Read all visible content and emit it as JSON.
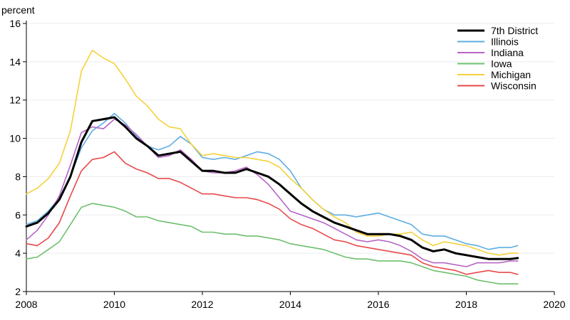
{
  "chart_data": {
    "type": "line",
    "y_unit_label": "percent",
    "xlim": [
      2008,
      2020
    ],
    "ylim": [
      2,
      16
    ],
    "x_ticks": [
      2008,
      2010,
      2012,
      2014,
      2016,
      2018,
      2020
    ],
    "y_ticks": [
      2,
      4,
      6,
      8,
      10,
      12,
      14,
      16
    ],
    "grid": "horizontal",
    "legend_position": "top-right",
    "series": [
      {
        "name": "7th District",
        "color": "#000000",
        "emphasis": true,
        "x": [
          2008.0,
          2008.25,
          2008.5,
          2008.75,
          2009.0,
          2009.25,
          2009.5,
          2009.75,
          2010.0,
          2010.25,
          2010.5,
          2010.75,
          2011.0,
          2011.25,
          2011.5,
          2011.75,
          2012.0,
          2012.25,
          2012.5,
          2012.75,
          2013.0,
          2013.25,
          2013.5,
          2013.75,
          2014.0,
          2014.25,
          2014.5,
          2014.75,
          2015.0,
          2015.25,
          2015.5,
          2015.75,
          2016.0,
          2016.25,
          2016.5,
          2016.75,
          2017.0,
          2017.25,
          2017.5,
          2017.75,
          2018.0,
          2018.25,
          2018.5,
          2018.75,
          2019.0,
          2019.17
        ],
        "y": [
          5.4,
          5.6,
          6.1,
          6.8,
          8.0,
          9.8,
          10.9,
          11.0,
          11.1,
          10.6,
          10.0,
          9.6,
          9.1,
          9.2,
          9.3,
          8.8,
          8.3,
          8.3,
          8.2,
          8.2,
          8.4,
          8.2,
          8.0,
          7.6,
          7.1,
          6.6,
          6.2,
          5.9,
          5.6,
          5.4,
          5.2,
          5.0,
          5.0,
          5.0,
          4.9,
          4.7,
          4.3,
          4.1,
          4.2,
          4.0,
          3.9,
          3.8,
          3.7,
          3.7,
          3.7,
          3.75
        ]
      },
      {
        "name": "Illinois",
        "color": "#5dade2",
        "x": [
          2008.0,
          2008.25,
          2008.5,
          2008.75,
          2009.0,
          2009.25,
          2009.5,
          2009.75,
          2010.0,
          2010.25,
          2010.5,
          2010.75,
          2011.0,
          2011.25,
          2011.5,
          2011.75,
          2012.0,
          2012.25,
          2012.5,
          2012.75,
          2013.0,
          2013.25,
          2013.5,
          2013.75,
          2014.0,
          2014.25,
          2014.5,
          2014.75,
          2015.0,
          2015.25,
          2015.5,
          2015.75,
          2016.0,
          2016.25,
          2016.5,
          2016.75,
          2017.0,
          2017.25,
          2017.5,
          2017.75,
          2018.0,
          2018.25,
          2018.5,
          2018.75,
          2019.0,
          2019.17
        ],
        "y": [
          5.5,
          5.7,
          6.2,
          6.9,
          8.0,
          9.5,
          10.4,
          10.8,
          11.3,
          10.8,
          10.1,
          9.6,
          9.4,
          9.6,
          10.1,
          9.7,
          9.0,
          8.9,
          9.0,
          8.9,
          9.1,
          9.3,
          9.2,
          8.9,
          8.3,
          7.4,
          6.8,
          6.3,
          6.0,
          6.0,
          5.9,
          6.0,
          6.1,
          5.9,
          5.7,
          5.5,
          5.0,
          4.9,
          4.9,
          4.7,
          4.5,
          4.4,
          4.2,
          4.3,
          4.3,
          4.4
        ]
      },
      {
        "name": "Indiana",
        "color": "#b565c6",
        "x": [
          2008.0,
          2008.25,
          2008.5,
          2008.75,
          2009.0,
          2009.25,
          2009.5,
          2009.75,
          2010.0,
          2010.25,
          2010.5,
          2010.75,
          2011.0,
          2011.25,
          2011.5,
          2011.75,
          2012.0,
          2012.25,
          2012.5,
          2012.75,
          2013.0,
          2013.25,
          2013.5,
          2013.75,
          2014.0,
          2014.25,
          2014.5,
          2014.75,
          2015.0,
          2015.25,
          2015.5,
          2015.75,
          2016.0,
          2016.25,
          2016.5,
          2016.75,
          2017.0,
          2017.25,
          2017.5,
          2017.75,
          2018.0,
          2018.25,
          2018.5,
          2018.75,
          2019.0,
          2019.17
        ],
        "y": [
          4.7,
          5.2,
          6.0,
          7.0,
          8.6,
          10.3,
          10.6,
          10.5,
          11.0,
          10.7,
          10.2,
          9.6,
          9.0,
          9.1,
          9.4,
          8.9,
          8.3,
          8.2,
          8.2,
          8.3,
          8.5,
          8.1,
          7.6,
          6.9,
          6.2,
          6.0,
          5.8,
          5.6,
          5.3,
          5.0,
          4.7,
          4.6,
          4.7,
          4.6,
          4.4,
          4.1,
          3.7,
          3.5,
          3.5,
          3.4,
          3.3,
          3.5,
          3.5,
          3.5,
          3.6,
          3.6
        ]
      },
      {
        "name": "Iowa",
        "color": "#6dbf6d",
        "x": [
          2008.0,
          2008.25,
          2008.5,
          2008.75,
          2009.0,
          2009.25,
          2009.5,
          2009.75,
          2010.0,
          2010.25,
          2010.5,
          2010.75,
          2011.0,
          2011.25,
          2011.5,
          2011.75,
          2012.0,
          2012.25,
          2012.5,
          2012.75,
          2013.0,
          2013.25,
          2013.5,
          2013.75,
          2014.0,
          2014.25,
          2014.5,
          2014.75,
          2015.0,
          2015.25,
          2015.5,
          2015.75,
          2016.0,
          2016.25,
          2016.5,
          2016.75,
          2017.0,
          2017.25,
          2017.5,
          2017.75,
          2018.0,
          2018.25,
          2018.5,
          2018.75,
          2019.0,
          2019.17
        ],
        "y": [
          3.7,
          3.8,
          4.2,
          4.6,
          5.5,
          6.4,
          6.6,
          6.5,
          6.4,
          6.2,
          5.9,
          5.9,
          5.7,
          5.6,
          5.5,
          5.4,
          5.1,
          5.1,
          5.0,
          5.0,
          4.9,
          4.9,
          4.8,
          4.7,
          4.5,
          4.4,
          4.3,
          4.2,
          4.0,
          3.8,
          3.7,
          3.7,
          3.6,
          3.6,
          3.6,
          3.5,
          3.3,
          3.1,
          3.0,
          2.9,
          2.8,
          2.6,
          2.5,
          2.4,
          2.4,
          2.4
        ]
      },
      {
        "name": "Michigan",
        "color": "#f5d13a",
        "x": [
          2008.0,
          2008.25,
          2008.5,
          2008.75,
          2009.0,
          2009.25,
          2009.5,
          2009.75,
          2010.0,
          2010.25,
          2010.5,
          2010.75,
          2011.0,
          2011.25,
          2011.5,
          2011.75,
          2012.0,
          2012.25,
          2012.5,
          2012.75,
          2013.0,
          2013.25,
          2013.5,
          2013.75,
          2014.0,
          2014.25,
          2014.5,
          2014.75,
          2015.0,
          2015.25,
          2015.5,
          2015.75,
          2016.0,
          2016.25,
          2016.5,
          2016.75,
          2017.0,
          2017.25,
          2017.5,
          2017.75,
          2018.0,
          2018.25,
          2018.5,
          2018.75,
          2019.0,
          2019.17
        ],
        "y": [
          7.1,
          7.4,
          7.9,
          8.7,
          10.4,
          13.5,
          14.6,
          14.2,
          13.9,
          13.1,
          12.2,
          11.7,
          11.0,
          10.6,
          10.5,
          9.7,
          9.1,
          9.2,
          9.1,
          9.0,
          9.0,
          8.9,
          8.8,
          8.5,
          7.9,
          7.4,
          6.8,
          6.3,
          5.9,
          5.6,
          5.1,
          4.9,
          4.9,
          5.0,
          5.0,
          5.1,
          4.7,
          4.4,
          4.6,
          4.5,
          4.4,
          4.2,
          4.0,
          3.9,
          4.0,
          4.0
        ]
      },
      {
        "name": "Wisconsin",
        "color": "#e8484a",
        "x": [
          2008.0,
          2008.25,
          2008.5,
          2008.75,
          2009.0,
          2009.25,
          2009.5,
          2009.75,
          2010.0,
          2010.25,
          2010.5,
          2010.75,
          2011.0,
          2011.25,
          2011.5,
          2011.75,
          2012.0,
          2012.25,
          2012.5,
          2012.75,
          2013.0,
          2013.25,
          2013.5,
          2013.75,
          2014.0,
          2014.25,
          2014.5,
          2014.75,
          2015.0,
          2015.25,
          2015.5,
          2015.75,
          2016.0,
          2016.25,
          2016.5,
          2016.75,
          2017.0,
          2017.25,
          2017.5,
          2017.75,
          2018.0,
          2018.25,
          2018.5,
          2018.75,
          2019.0,
          2019.17
        ],
        "y": [
          4.5,
          4.4,
          4.8,
          5.6,
          7.0,
          8.3,
          8.9,
          9.0,
          9.3,
          8.7,
          8.4,
          8.2,
          7.9,
          7.9,
          7.7,
          7.4,
          7.1,
          7.1,
          7.0,
          6.9,
          6.9,
          6.8,
          6.6,
          6.3,
          5.8,
          5.5,
          5.3,
          5.0,
          4.7,
          4.6,
          4.4,
          4.3,
          4.2,
          4.1,
          4.0,
          3.9,
          3.5,
          3.3,
          3.2,
          3.1,
          2.9,
          3.0,
          3.1,
          3.0,
          3.0,
          2.9
        ]
      }
    ]
  }
}
